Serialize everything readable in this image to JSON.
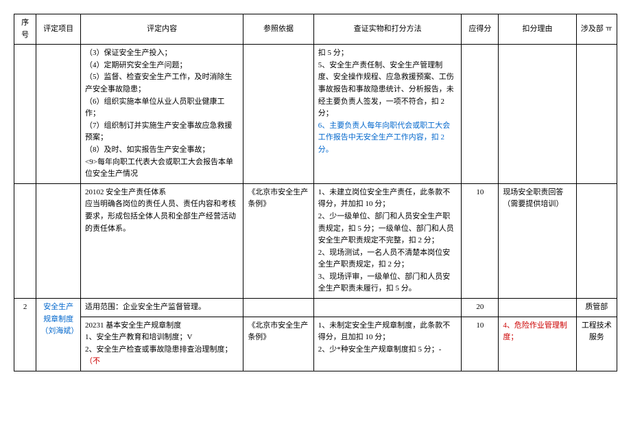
{
  "headers": {
    "seq": "序号",
    "item": "评定项目",
    "content": "评定内容",
    "ref": "参照依据",
    "verify": "查证实物和打分方法",
    "score": "应得分",
    "reason": "扣分理由",
    "dept": "涉及部 ㅠ"
  },
  "rows": [
    {
      "seq": "",
      "item": "",
      "content_lines": [
        {
          "text": "（3）保证安全生产投入；"
        },
        {
          "text": "（4）定期研究安全生产问题；"
        },
        {
          "text": "（5）监督、检查安全生产工作，及时消除生产安全事故隐患；"
        },
        {
          "text": "（6）组织实施本单位从业人员职业健康工作；"
        },
        {
          "text": "（7）组织制订并实施生产安全事故应急救援预案；"
        },
        {
          "text": "（8）及时、如实报告生产安全事故；"
        },
        {
          "text": "<9>每年向职工代表大会或职工大会报告本单位安全生产情况"
        }
      ],
      "ref": "",
      "verify_lines": [
        {
          "text": "扣 5 分；"
        },
        {
          "text": "5、安全生产责任制、安全生产管理制度、安全操作规程、应急救援预案、工伤事故报告和事故隐患统计、分析报告，未经主要负责人签发，一项不符合，扣 2 分；"
        },
        {
          "text": "6、主要负责人每年向职代会或职工大会工作报告中无安全生产工作内容，扣 2 分。",
          "class": "blue"
        }
      ],
      "score": "",
      "reason": "",
      "dept": ""
    },
    {
      "seq": "",
      "item": "",
      "content_lines": [
        {
          "text": "20102 安全生产责任体系"
        },
        {
          "text": "应当明确各岗位的责任人员、责任内容和考核要求，形成包括全体人员和全部生产经营活动的责任体系。"
        }
      ],
      "ref": "《北京市安全生产条例》",
      "verify_lines": [
        {
          "text": "1、未建立岗位安全生产责任，此条款不得分，并加扣 10 分；"
        },
        {
          "text": "2、少一级单位、部门和人员安全生产职责规定，扣 5 分；一级单位、部门和人员安全生产职责规定不完整，扣 2 分；"
        },
        {
          "text": "2、现场测试，一名人员不清楚本岗位安全生产职责规定，扣 2 分；"
        },
        {
          "text": "3、现场评审，一级单位、部门和人员安全生产职责未履行，扣 5 分。"
        }
      ],
      "score": "10",
      "reason": "现场安全职责回答（需要提供培训）",
      "dept": ""
    },
    {
      "seq": "2",
      "item": "安全生产规章制度（刘海斌）",
      "item_class": "blue",
      "content_lines": [
        {
          "text": "适用范围：企业安全生产监督管理。"
        }
      ],
      "ref": "",
      "verify_lines": [],
      "score": "20",
      "reason": "",
      "dept": "质管部"
    },
    {
      "seq": "",
      "item": "",
      "content_lines": [
        {
          "text": "20231 基本安全生产规章制度"
        },
        {
          "text": "1、安全生产教育和培训制度；V"
        },
        {
          "text": "2、安全生产检查或事故隐患排查治理制度；",
          "suffix": "（不",
          "suffix_class": "red"
        }
      ],
      "ref": "《北京市安全生产条例》",
      "verify_lines": [
        {
          "text": "1、未制定安全生产规章制度，此条款不得分，且加扣 10 分；"
        },
        {
          "text": "2、少*种安全生产规章制度扣 5 分；-"
        }
      ],
      "score": "10",
      "reason": "4、危险作业管理制度；",
      "reason_class": "red",
      "dept": "工程技术服务"
    }
  ]
}
